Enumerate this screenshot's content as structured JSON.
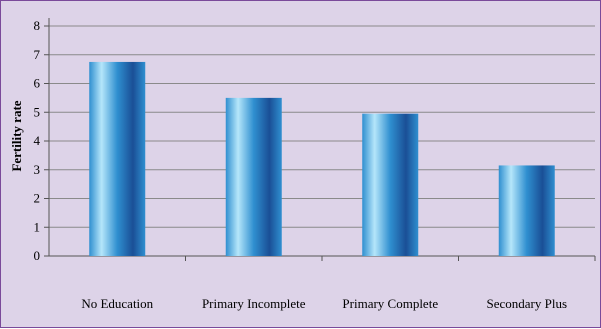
{
  "chart_data": {
    "type": "bar",
    "title": "",
    "xlabel": "",
    "ylabel": "Fertility rate",
    "categories": [
      "No Education",
      "Primary Incomplete",
      "Primary Complete",
      "Secondary Plus"
    ],
    "values": [
      6.75,
      5.5,
      4.95,
      3.15
    ],
    "ylim": [
      0,
      8
    ],
    "yticks": [
      "0",
      "1",
      "2",
      "3",
      "4",
      "5",
      "6",
      "7",
      "8"
    ],
    "grid": true,
    "legend": "none"
  },
  "colors": {
    "plot_background": "#ddd3e8",
    "gridline": "#8a8a8a",
    "bar_dark": "#1a4f96",
    "bar_mid": "#2f8fd0",
    "bar_light": "#b5e6fa",
    "frame": "#7a4a9a"
  }
}
